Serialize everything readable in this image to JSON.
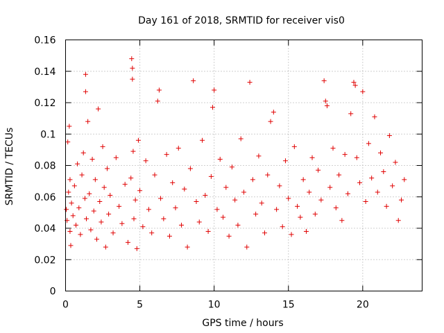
{
  "chart_data": {
    "type": "scatter",
    "title": "Day 161 of 2018, SRMTID for receiver vis0",
    "xlabel": "GPS time / hours",
    "ylabel": "SRMTID / TECUs",
    "xlim": [
      0,
      24
    ],
    "ylim": [
      0,
      0.16
    ],
    "xticks": [
      0,
      5,
      10,
      15,
      20
    ],
    "xtick_labels": [
      "0",
      "5",
      "10",
      "15",
      "20"
    ],
    "yticks": [
      0,
      0.02,
      0.04,
      0.06,
      0.08,
      0.1,
      0.12,
      0.14,
      0.16
    ],
    "ytick_labels": [
      "0",
      "0.02",
      "0.04",
      "0.06",
      "0.08",
      "0.1",
      "0.12",
      "0.14",
      "0.16"
    ],
    "grid": true,
    "marker": "plus",
    "marker_color": "#e00000",
    "series": [
      {
        "name": "vis0",
        "x": [
          0.05,
          0.1,
          0.15,
          0.2,
          0.25,
          0.3,
          0.3,
          0.35,
          0.4,
          0.5,
          0.6,
          0.7,
          0.8,
          0.9,
          1.0,
          1.1,
          1.2,
          1.3,
          1.35,
          1.35,
          1.4,
          1.5,
          1.6,
          1.7,
          1.8,
          1.9,
          2.0,
          2.1,
          2.2,
          2.3,
          2.4,
          2.5,
          2.6,
          2.7,
          2.8,
          2.9,
          3.0,
          3.2,
          3.4,
          3.6,
          3.8,
          4.0,
          4.2,
          4.4,
          4.45,
          4.5,
          4.5,
          4.55,
          4.6,
          4.7,
          4.8,
          4.9,
          5.0,
          5.2,
          5.4,
          5.6,
          5.8,
          6.0,
          6.2,
          6.3,
          6.4,
          6.6,
          6.8,
          7.0,
          7.2,
          7.4,
          7.6,
          7.8,
          8.0,
          8.2,
          8.4,
          8.6,
          8.8,
          9.0,
          9.2,
          9.4,
          9.6,
          9.8,
          9.9,
          10.0,
          10.2,
          10.4,
          10.6,
          10.8,
          11.0,
          11.2,
          11.4,
          11.6,
          11.8,
          12.0,
          12.2,
          12.4,
          12.6,
          12.8,
          13.0,
          13.2,
          13.4,
          13.6,
          13.8,
          14.0,
          14.2,
          14.4,
          14.6,
          14.8,
          15.0,
          15.2,
          15.4,
          15.6,
          15.8,
          16.0,
          16.2,
          16.4,
          16.6,
          16.8,
          17.0,
          17.2,
          17.4,
          17.5,
          17.6,
          17.8,
          18.0,
          18.2,
          18.4,
          18.6,
          18.8,
          19.0,
          19.2,
          19.4,
          19.5,
          19.6,
          19.8,
          20.0,
          20.2,
          20.4,
          20.6,
          20.8,
          21.0,
          21.2,
          21.4,
          21.6,
          21.8,
          22.0,
          22.2,
          22.4,
          22.6,
          22.8
        ],
        "y": [
          0.052,
          0.045,
          0.095,
          0.063,
          0.105,
          0.038,
          0.071,
          0.029,
          0.056,
          0.048,
          0.067,
          0.042,
          0.081,
          0.053,
          0.036,
          0.074,
          0.088,
          0.059,
          0.138,
          0.127,
          0.046,
          0.108,
          0.062,
          0.039,
          0.084,
          0.051,
          0.071,
          0.033,
          0.116,
          0.057,
          0.044,
          0.092,
          0.066,
          0.028,
          0.078,
          0.049,
          0.061,
          0.037,
          0.085,
          0.054,
          0.043,
          0.068,
          0.031,
          0.072,
          0.148,
          0.142,
          0.135,
          0.089,
          0.046,
          0.058,
          0.027,
          0.096,
          0.064,
          0.041,
          0.083,
          0.052,
          0.037,
          0.074,
          0.121,
          0.128,
          0.059,
          0.046,
          0.087,
          0.035,
          0.069,
          0.053,
          0.091,
          0.042,
          0.065,
          0.028,
          0.078,
          0.134,
          0.057,
          0.044,
          0.096,
          0.061,
          0.038,
          0.073,
          0.117,
          0.128,
          0.052,
          0.084,
          0.047,
          0.066,
          0.035,
          0.079,
          0.058,
          0.042,
          0.097,
          0.063,
          0.028,
          0.133,
          0.071,
          0.049,
          0.086,
          0.056,
          0.037,
          0.074,
          0.108,
          0.114,
          0.052,
          0.067,
          0.041,
          0.083,
          0.059,
          0.036,
          0.092,
          0.054,
          0.047,
          0.071,
          0.038,
          0.063,
          0.085,
          0.049,
          0.077,
          0.058,
          0.134,
          0.121,
          0.118,
          0.066,
          0.091,
          0.053,
          0.074,
          0.045,
          0.087,
          0.062,
          0.113,
          0.133,
          0.131,
          0.085,
          0.069,
          0.127,
          0.057,
          0.094,
          0.072,
          0.111,
          0.063,
          0.088,
          0.076,
          0.054,
          0.099,
          0.067,
          0.082,
          0.045,
          0.058,
          0.071
        ]
      }
    ]
  }
}
